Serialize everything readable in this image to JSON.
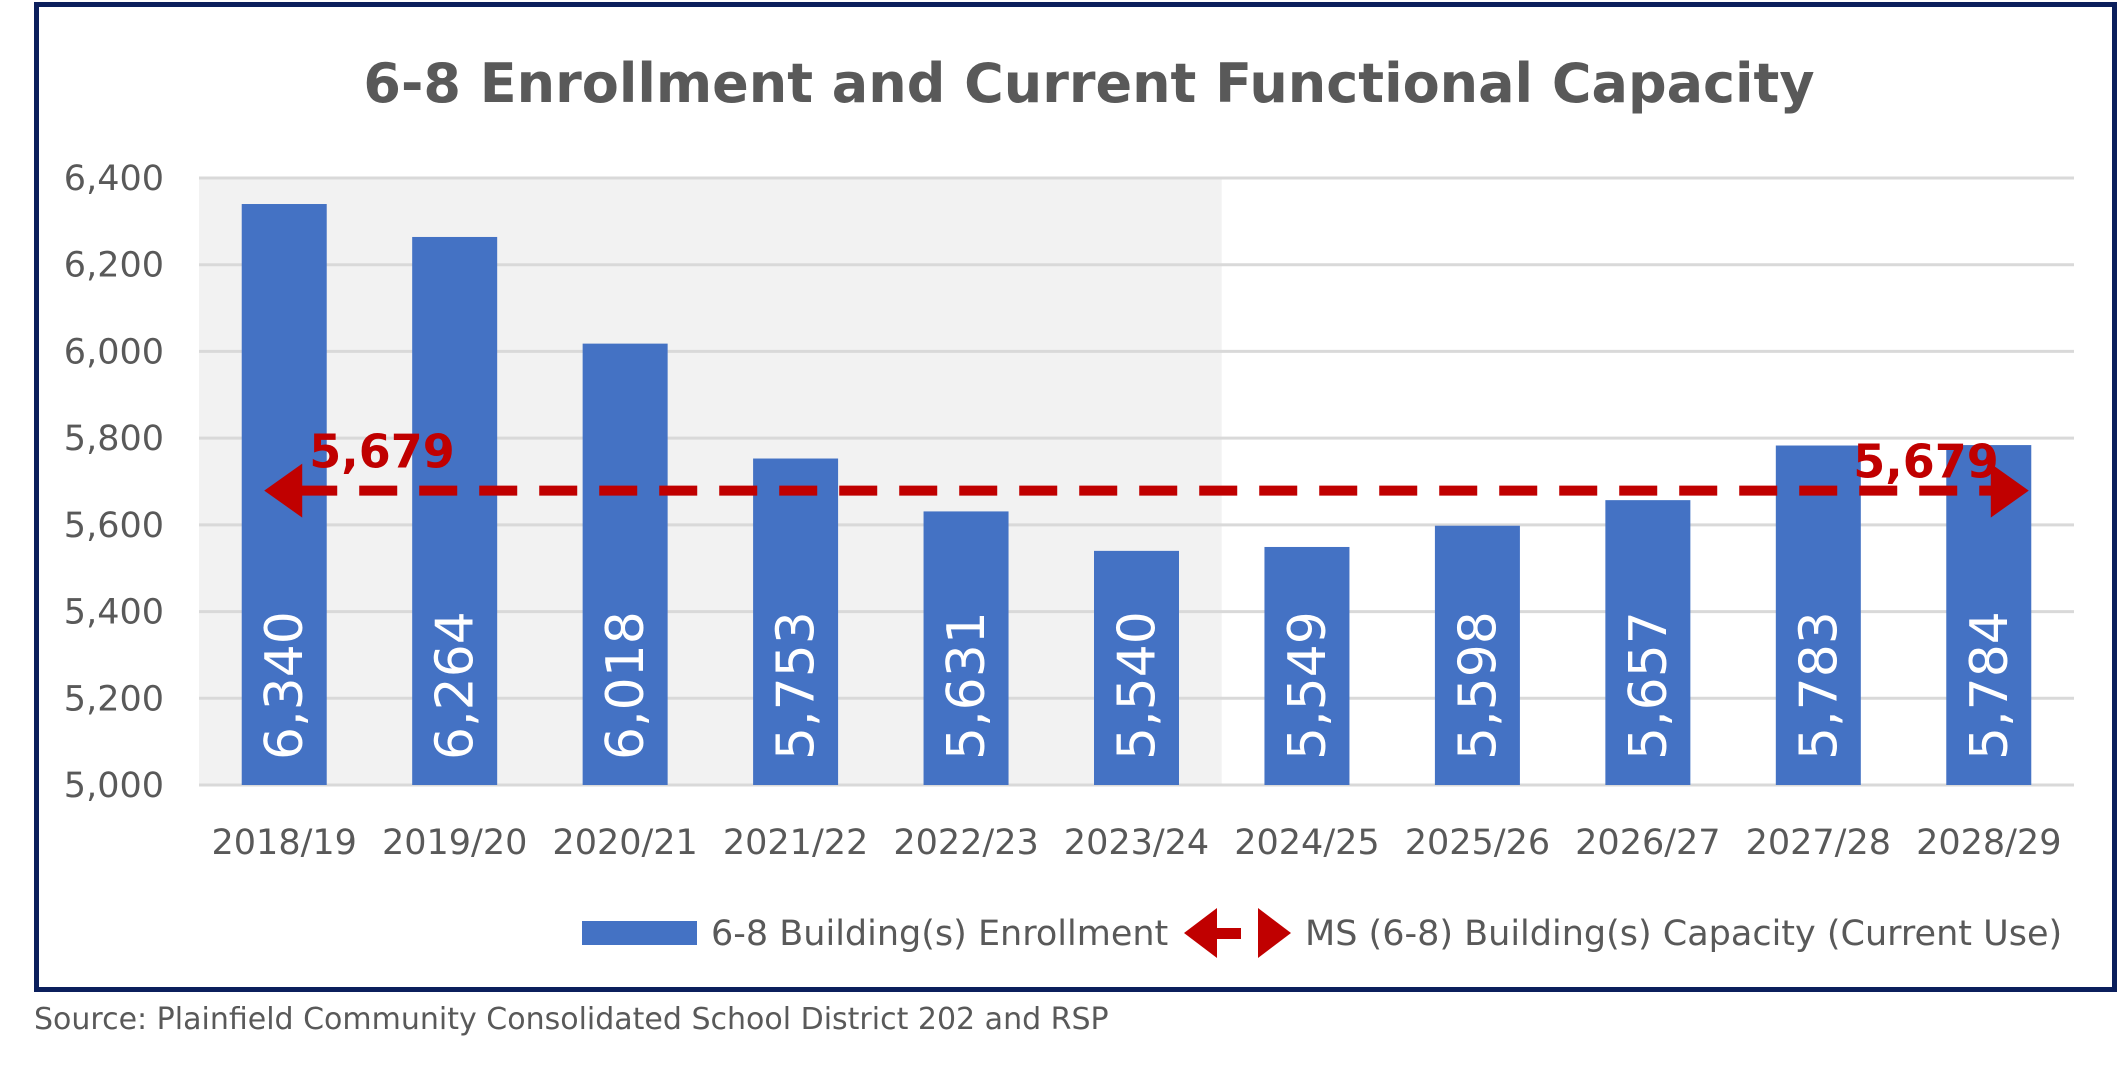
{
  "chart_data": {
    "type": "bar",
    "title": "6-8 Enrollment and Current Functional Capacity",
    "categories": [
      "2018/19",
      "2019/20",
      "2020/21",
      "2021/22",
      "2022/23",
      "2023/24",
      "2024/25",
      "2025/26",
      "2026/27",
      "2027/28",
      "2028/29"
    ],
    "series": [
      {
        "name": "6-8 Building(s) Enrollment",
        "type": "bar",
        "color": "#4472c4",
        "values": [
          6340,
          6264,
          6018,
          5753,
          5631,
          5540,
          5549,
          5598,
          5657,
          5783,
          5784
        ],
        "labels": [
          "6,340",
          "6,264",
          "6,018",
          "5,753",
          "5,631",
          "5,540",
          "5,549",
          "5,598",
          "5,657",
          "5,783",
          "5,784"
        ]
      },
      {
        "name": "MS (6-8) Building(s) Capacity (Current Use)",
        "type": "line",
        "style": "dashed-double-arrow",
        "color": "#c00000",
        "value": 5679,
        "label": "5,679"
      }
    ],
    "shaded_historical_categories": [
      "2018/19",
      "2019/20",
      "2020/21",
      "2021/22",
      "2022/23",
      "2023/24"
    ],
    "ylim": [
      5000,
      6400
    ],
    "yticks": [
      5000,
      5200,
      5400,
      5600,
      5800,
      6000,
      6200,
      6400
    ],
    "ytick_labels": [
      "5,000",
      "5,200",
      "5,400",
      "5,600",
      "5,800",
      "6,000",
      "6,200",
      "6,400"
    ],
    "grid": true,
    "legend_position": "bottom",
    "xlabel": "",
    "ylabel": ""
  },
  "source": "Source: Plainfield Community Consolidated School District 202 and RSP"
}
